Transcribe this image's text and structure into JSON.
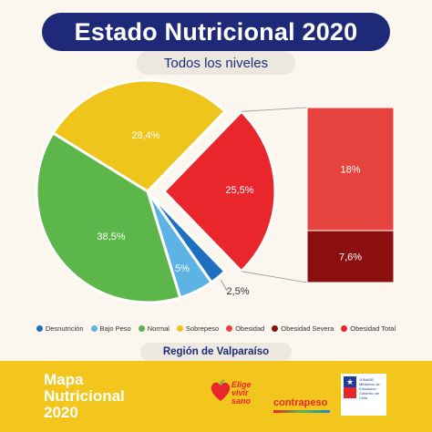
{
  "header": {
    "title": "Estado Nutricional 2020",
    "subtitle": "Todos los niveles"
  },
  "chart_data": {
    "type": "pie",
    "slices": [
      {
        "name": "Desnutrición",
        "value": 0,
        "color": "#1E6FC0"
      },
      {
        "name": "Obesidad Total",
        "value": 25.5,
        "label": "25,5%",
        "color": "#E8262B"
      },
      {
        "name": "Desnutrición",
        "value": 2.5,
        "label": "2,5%",
        "color": "#1E6FC0"
      },
      {
        "name": "Bajo Peso",
        "value": 5,
        "label": "5%",
        "color": "#5DB3E4"
      },
      {
        "name": "Normal",
        "value": 38.5,
        "label": "38,5%",
        "color": "#5DB649"
      },
      {
        "name": "Sobrepeso",
        "value": 28.4,
        "label": "28,4%",
        "color": "#EFC41B"
      }
    ],
    "breakdown": {
      "of": "Obesidad Total",
      "segments": [
        {
          "name": "Obesidad",
          "value": 18,
          "label": "18%",
          "color": "#E8443F"
        },
        {
          "name": "Obesidad Severa",
          "value": 7.6,
          "label": "7,6%",
          "color": "#8B0F0F"
        }
      ]
    },
    "legend": [
      {
        "label": "Desnutrición",
        "color": "#1E6FC0"
      },
      {
        "label": "Bajo Peso",
        "color": "#5DB3E4"
      },
      {
        "label": "Normal",
        "color": "#5DB649"
      },
      {
        "label": "Sobrepeso",
        "color": "#EFC41B"
      },
      {
        "label": "Obesidad",
        "color": "#E8443F"
      },
      {
        "label": "Obesidad Severa",
        "color": "#8B0F0F"
      },
      {
        "label": "Obesidad Total",
        "color": "#E8262B"
      }
    ],
    "legend_position": "bottom"
  },
  "region": "Región de Valparaíso",
  "footer": {
    "title_line1": "Mapa",
    "title_line2": "Nutricional",
    "title_line3": "2020",
    "logo_elige_line1": "Elige",
    "logo_elige_line2": "vivir",
    "logo_elige_line3": "sano",
    "logo_contrapeso": "contrapeso",
    "gob_text": "JUNAEB Ministerio de Educación · Gobierno de Chile"
  }
}
